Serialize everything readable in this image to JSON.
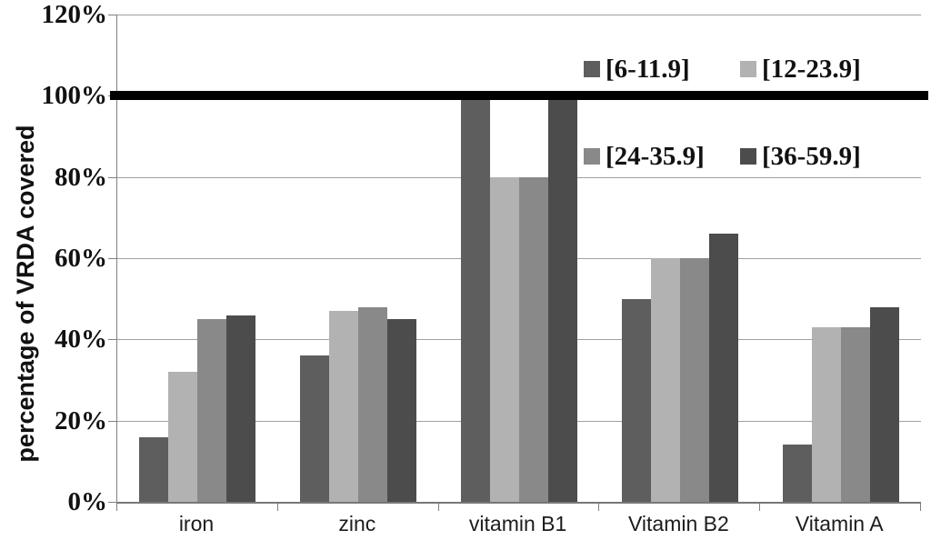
{
  "chart_data": {
    "type": "bar",
    "title": "",
    "xlabel": "",
    "ylabel": "percentage of VRDA covered",
    "categories": [
      "iron",
      "zinc",
      "vitamin B1",
      "Vitamin B2",
      "Vitamin A"
    ],
    "series": [
      {
        "name": "[6-11.9]",
        "color": "#5e5e5e",
        "values": [
          16,
          36,
          99,
          50,
          14
        ]
      },
      {
        "name": "[12-23.9]",
        "color": "#b2b2b2",
        "values": [
          32,
          47,
          80,
          60,
          43
        ]
      },
      {
        "name": "[24-35.9]",
        "color": "#898989",
        "values": [
          45,
          48,
          80,
          60,
          43
        ]
      },
      {
        "name": "[36-59.9]",
        "color": "#4c4c4c",
        "values": [
          46,
          45,
          99,
          66,
          48
        ]
      }
    ],
    "ylim": [
      0,
      120
    ],
    "yticks_percent": [
      0,
      20,
      40,
      60,
      80,
      100,
      120
    ],
    "ytick_labels": [
      "0%",
      "20%",
      "40%",
      "60%",
      "80%",
      "100%",
      "120%"
    ],
    "grid": true,
    "gridline_color": "#a0a0a0",
    "reference_line": {
      "value": 100,
      "color": "#000000",
      "thickness_px": 10
    },
    "legend_position": "upper-right-inside",
    "legend_rows": [
      [
        "[6-11.9]",
        "[12-23.9]"
      ],
      [
        "[24-35.9]",
        "[36-59.9]"
      ]
    ],
    "background_color": "#ffffff"
  }
}
